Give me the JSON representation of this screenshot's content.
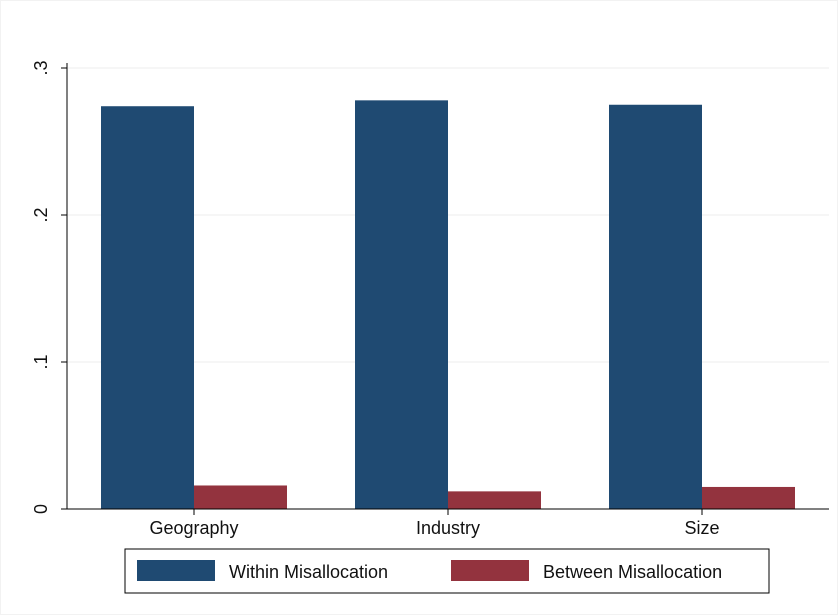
{
  "chart_data": {
    "type": "bar",
    "categories": [
      "Geography",
      "Industry",
      "Size"
    ],
    "series": [
      {
        "name": "Within Misallocation",
        "color": "#1f4a72",
        "values": [
          0.274,
          0.278,
          0.275
        ]
      },
      {
        "name": "Between Misallocation",
        "color": "#93333e",
        "values": [
          0.016,
          0.012,
          0.015
        ]
      }
    ],
    "ylim": [
      0,
      0.3
    ],
    "yticks": [
      0,
      0.1,
      0.2,
      0.3
    ],
    "ytick_labels": [
      "0",
      ".1",
      ".2",
      ".3"
    ],
    "grid": true,
    "legend_placement": "bottom",
    "title": "",
    "xlabel": "",
    "ylabel": ""
  }
}
